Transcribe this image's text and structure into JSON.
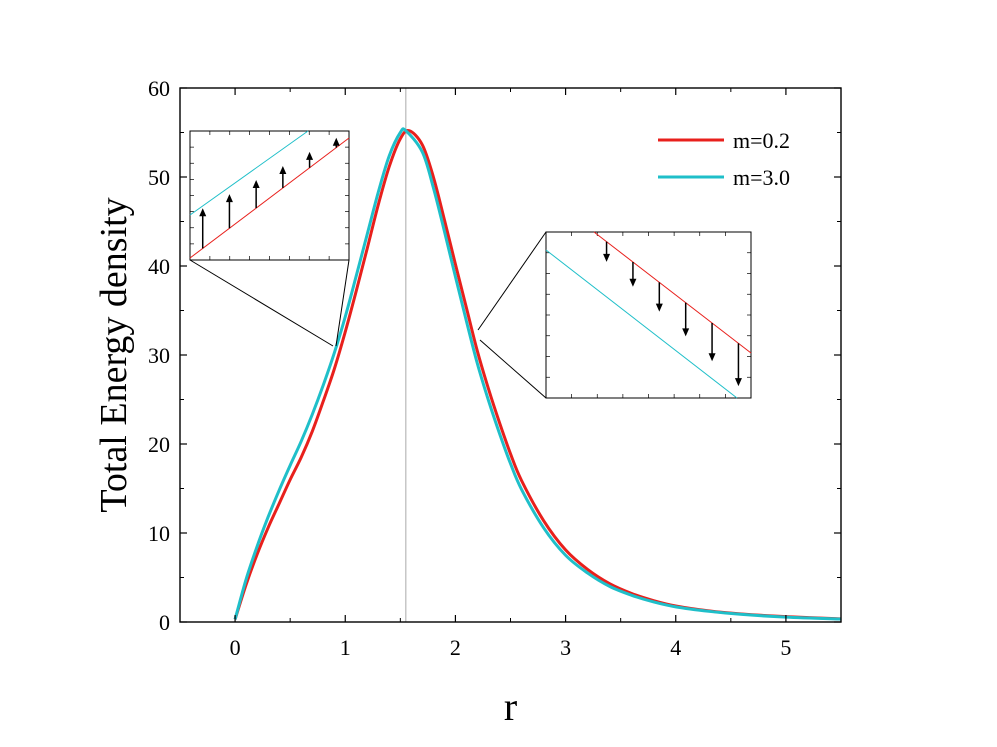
{
  "chart_data": {
    "type": "line",
    "xlabel": "r",
    "ylabel": "Total Energy density",
    "xlim": [
      -0.5,
      5.5
    ],
    "ylim": [
      0,
      60
    ],
    "x_ticks": [
      "0",
      "1",
      "2",
      "3",
      "4",
      "5"
    ],
    "y_ticks": [
      "0",
      "10",
      "20",
      "30",
      "40",
      "50",
      "60"
    ],
    "grid": false,
    "legend_position": "top-right",
    "reference_line_x": 1.55,
    "colors": {
      "m02": "#e8201c",
      "m30": "#1fbfc9"
    },
    "series": [
      {
        "name": "m=0.2",
        "x": [
          0,
          0.1,
          0.2,
          0.3,
          0.4,
          0.5,
          0.6,
          0.7,
          0.8,
          0.9,
          1.0,
          1.1,
          1.2,
          1.3,
          1.4,
          1.5,
          1.58,
          1.7,
          1.8,
          1.9,
          2.0,
          2.1,
          2.2,
          2.3,
          2.4,
          2.5,
          2.6,
          2.8,
          3.0,
          3.2,
          3.4,
          3.6,
          3.8,
          4.0,
          4.3,
          4.6,
          5.0,
          5.5
        ],
        "y": [
          0.3,
          4.2,
          7.6,
          10.6,
          13.3,
          16.0,
          18.5,
          21.4,
          24.8,
          28.4,
          32.6,
          37.2,
          42.0,
          46.9,
          51.2,
          54.3,
          55.2,
          53.6,
          50.0,
          45.2,
          40.2,
          35.3,
          30.4,
          26.2,
          22.4,
          18.9,
          15.9,
          11.4,
          8.1,
          5.9,
          4.3,
          3.2,
          2.4,
          1.8,
          1.25,
          0.9,
          0.6,
          0.35
        ]
      },
      {
        "name": "m=3.0",
        "x": [
          0,
          0.1,
          0.2,
          0.3,
          0.4,
          0.5,
          0.6,
          0.7,
          0.8,
          0.9,
          1.0,
          1.1,
          1.2,
          1.3,
          1.4,
          1.5,
          1.55,
          1.7,
          1.8,
          1.9,
          2.0,
          2.1,
          2.2,
          2.3,
          2.4,
          2.5,
          2.6,
          2.8,
          3.0,
          3.2,
          3.4,
          3.6,
          3.8,
          4.0,
          4.3,
          4.6,
          5.0,
          5.5
        ],
        "y": [
          0.3,
          4.8,
          8.5,
          11.8,
          14.8,
          17.6,
          20.3,
          23.3,
          26.6,
          30.2,
          34.3,
          38.9,
          43.6,
          48.3,
          52.4,
          55.0,
          55.2,
          52.8,
          48.8,
          43.9,
          38.8,
          33.8,
          29.0,
          24.9,
          21.2,
          17.8,
          14.9,
          10.6,
          7.5,
          5.5,
          4.0,
          3.0,
          2.25,
          1.7,
          1.2,
          0.85,
          0.55,
          0.33
        ]
      }
    ],
    "insets": [
      {
        "location": "upper-left",
        "zoom_region": "rising edge near r≈1",
        "arrow_direction": "up"
      },
      {
        "location": "right",
        "zoom_region": "falling edge near r≈2.2",
        "arrow_direction": "down"
      }
    ]
  }
}
